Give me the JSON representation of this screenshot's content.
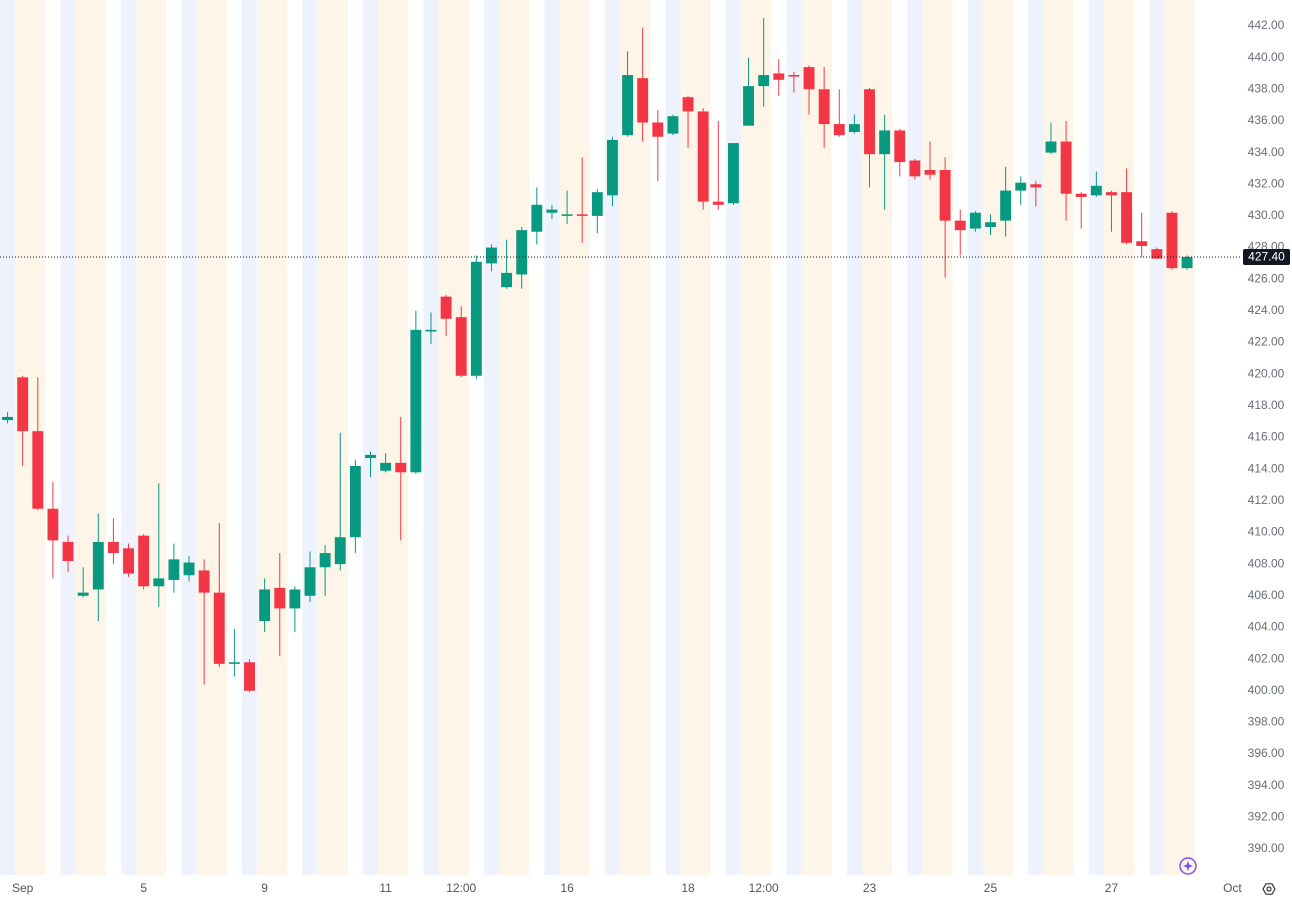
{
  "chart_data": {
    "type": "candlestick",
    "open": [
      417.1,
      419.8,
      416.4,
      411.5,
      409.4,
      406.0,
      406.4,
      409.4,
      409.0,
      409.8,
      406.6,
      407.0,
      407.3,
      407.6,
      406.2,
      401.7,
      401.8,
      404.4,
      406.5,
      405.2,
      406.0,
      407.8,
      408.0,
      409.7,
      414.7,
      413.9,
      414.4,
      413.8,
      422.7,
      424.9,
      423.6,
      419.9,
      427.0,
      425.5,
      426.3,
      429.0,
      430.2,
      430.0,
      430.1,
      430.0,
      431.3,
      435.1,
      438.7,
      435.9,
      435.2,
      437.5,
      436.6,
      430.9,
      430.8,
      435.7,
      438.2,
      439.0,
      438.9,
      439.4,
      438.0,
      435.8,
      435.3,
      438.0,
      433.9,
      435.4,
      433.5,
      432.9,
      432.9,
      429.7,
      429.2,
      429.3,
      429.7,
      431.6,
      432.0,
      434.0,
      434.7,
      431.4,
      431.3,
      431.5,
      431.5,
      428.4,
      427.9,
      430.2,
      426.7
    ],
    "high": [
      417.6,
      419.9,
      419.8,
      413.2,
      409.8,
      407.8,
      411.2,
      410.9,
      409.3,
      409.9,
      413.1,
      409.3,
      408.5,
      408.3,
      410.6,
      403.9,
      402.0,
      407.1,
      408.7,
      406.6,
      408.8,
      409.2,
      416.3,
      414.6,
      415.1,
      415.0,
      417.3,
      424.0,
      423.9,
      425.0,
      424.3,
      427.5,
      428.2,
      428.5,
      429.3,
      431.8,
      430.7,
      431.6,
      433.7,
      431.7,
      435.0,
      440.4,
      441.9,
      436.7,
      436.4,
      437.6,
      436.8,
      436.0,
      434.6,
      440.0,
      442.5,
      439.9,
      439.1,
      439.5,
      439.4,
      438.0,
      436.4,
      438.1,
      436.4,
      435.5,
      433.6,
      434.7,
      433.7,
      430.4,
      430.3,
      430.1,
      433.1,
      432.5,
      432.2,
      435.9,
      436.0,
      431.5,
      432.8,
      431.6,
      433.0,
      430.2,
      428.0,
      430.3,
      427.5
    ],
    "low": [
      416.9,
      414.2,
      411.4,
      407.1,
      407.5,
      405.9,
      404.4,
      408.0,
      407.2,
      406.4,
      405.3,
      406.2,
      406.9,
      400.4,
      401.5,
      400.9,
      399.9,
      403.7,
      402.2,
      403.7,
      405.6,
      406.0,
      407.6,
      408.7,
      413.5,
      413.8,
      409.5,
      413.7,
      421.9,
      422.4,
      419.8,
      419.7,
      426.5,
      425.4,
      425.4,
      428.2,
      429.8,
      429.5,
      428.3,
      428.9,
      430.6,
      435.0,
      434.7,
      432.2,
      435.1,
      434.3,
      430.4,
      430.4,
      430.7,
      435.7,
      436.9,
      437.6,
      437.8,
      436.4,
      434.3,
      435.0,
      435.2,
      431.8,
      430.4,
      432.5,
      432.3,
      432.3,
      426.1,
      427.5,
      429.0,
      428.8,
      428.7,
      430.7,
      430.6,
      433.9,
      429.7,
      429.2,
      431.2,
      429.0,
      428.2,
      427.4,
      427.3,
      426.6,
      426.6
    ],
    "close": [
      417.3,
      416.4,
      411.5,
      409.5,
      408.2,
      406.2,
      409.4,
      408.7,
      407.4,
      406.6,
      407.1,
      408.3,
      408.1,
      406.2,
      401.7,
      401.8,
      400.0,
      406.4,
      405.2,
      406.4,
      407.8,
      408.7,
      409.7,
      414.2,
      414.9,
      414.4,
      413.8,
      422.8,
      422.8,
      423.5,
      419.9,
      427.1,
      428.0,
      426.4,
      429.1,
      430.7,
      430.4,
      430.1,
      430.0,
      431.5,
      434.8,
      438.9,
      435.9,
      435.0,
      436.3,
      436.6,
      430.9,
      430.7,
      434.6,
      438.2,
      438.9,
      438.6,
      438.8,
      438.0,
      435.8,
      435.1,
      435.8,
      433.9,
      435.4,
      433.4,
      432.5,
      432.6,
      429.7,
      429.1,
      430.2,
      429.6,
      431.6,
      432.1,
      431.8,
      434.7,
      431.4,
      431.2,
      431.9,
      431.3,
      428.3,
      428.1,
      427.3,
      426.7,
      427.4
    ],
    "up_color": "#089981",
    "down_color": "#f23645",
    "last_price": 427.4,
    "last_price_label": "427.40",
    "xlim": [
      -0.5,
      81.5
    ],
    "xticks": [
      {
        "value": 1,
        "label": "Sep"
      },
      {
        "value": 9,
        "label": "5"
      },
      {
        "value": 17,
        "label": "9"
      },
      {
        "value": 25,
        "label": "11"
      },
      {
        "value": 30,
        "label": "12:00"
      },
      {
        "value": 37,
        "label": "16"
      },
      {
        "value": 45,
        "label": "18"
      },
      {
        "value": 50,
        "label": "12:00"
      },
      {
        "value": 57,
        "label": "23"
      },
      {
        "value": 65,
        "label": "25"
      },
      {
        "value": 73,
        "label": "27"
      },
      {
        "value": 81,
        "label": "Oct"
      }
    ],
    "ylim": [
      388.36,
      443.64
    ],
    "yticks": [
      {
        "value": 390,
        "label": "390.00"
      },
      {
        "value": 392,
        "label": "392.00"
      },
      {
        "value": 394,
        "label": "394.00"
      },
      {
        "value": 396,
        "label": "396.00"
      },
      {
        "value": 398,
        "label": "398.00"
      },
      {
        "value": 400,
        "label": "400.00"
      },
      {
        "value": 402,
        "label": "402.00"
      },
      {
        "value": 404,
        "label": "404.00"
      },
      {
        "value": 406,
        "label": "406.00"
      },
      {
        "value": 408,
        "label": "408.00"
      },
      {
        "value": 410,
        "label": "410.00"
      },
      {
        "value": 412,
        "label": "412.00"
      },
      {
        "value": 414,
        "label": "414.00"
      },
      {
        "value": 416,
        "label": "416.00"
      },
      {
        "value": 418,
        "label": "418.00"
      },
      {
        "value": 420,
        "label": "420.00"
      },
      {
        "value": 422,
        "label": "422.00"
      },
      {
        "value": 424,
        "label": "424.00"
      },
      {
        "value": 426,
        "label": "426.00"
      },
      {
        "value": 428,
        "label": "428.00"
      },
      {
        "value": 430,
        "label": "430.00"
      },
      {
        "value": 432,
        "label": "432.00"
      },
      {
        "value": 434,
        "label": "434.00"
      },
      {
        "value": 436,
        "label": "436.00"
      },
      {
        "value": 438,
        "label": "438.00"
      },
      {
        "value": 440,
        "label": "440.00"
      },
      {
        "value": 442,
        "label": "442.00"
      }
    ]
  }
}
